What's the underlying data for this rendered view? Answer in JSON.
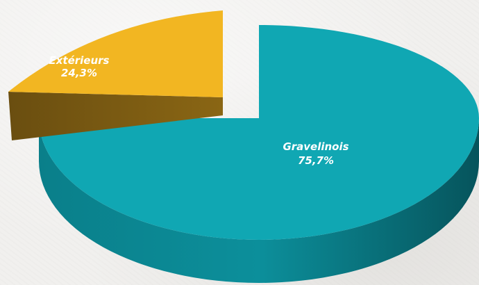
{
  "chart_data": {
    "type": "pie",
    "style": "3d-exploded",
    "slices": [
      {
        "name": "Gravelinois",
        "value": 75.7,
        "value_label": "75,7%",
        "color": "#10a7b3"
      },
      {
        "name": "Extérieurs",
        "value": 24.3,
        "value_label": "24,3%",
        "color": "#f2b622"
      }
    ]
  }
}
